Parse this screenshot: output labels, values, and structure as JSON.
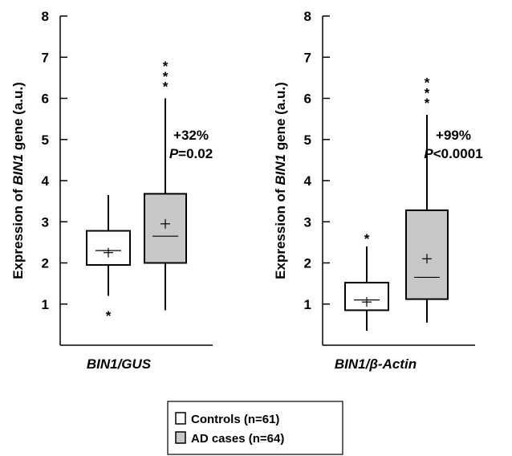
{
  "chart_data": [
    {
      "type": "box",
      "ylabel_prefix": "Expression of ",
      "ylabel_gene": "BIN1",
      "ylabel_suffix": " gene (a.u.)",
      "xlabel": "BIN1/GUS",
      "ylim": [
        0,
        8
      ],
      "yticks": [
        "1",
        "2",
        "3",
        "4",
        "5",
        "6",
        "7",
        "8"
      ],
      "boxes": [
        {
          "group": "Controls",
          "whisker_low": 1.2,
          "q1": 1.95,
          "median": 2.3,
          "mean": 2.25,
          "q3": 2.78,
          "whisker_high": 3.65,
          "outliers": [
            0.78
          ]
        },
        {
          "group": "AD cases",
          "whisker_low": 0.85,
          "q1": 2.0,
          "median": 2.65,
          "mean": 2.95,
          "q3": 3.68,
          "whisker_high": 6.0,
          "outliers": [
            6.35,
            6.6,
            6.85
          ]
        }
      ],
      "annotation": {
        "percent": "+32%",
        "p_italic": "P",
        "p_rest": "=0.02"
      }
    },
    {
      "type": "box",
      "ylabel_prefix": "Expression of ",
      "ylabel_gene": "BIN1",
      "ylabel_suffix": " gene (a.u.)",
      "xlabel": "BIN1/β-Actin",
      "ylim": [
        0,
        8
      ],
      "yticks": [
        "1",
        "2",
        "3",
        "4",
        "5",
        "6",
        "7",
        "8"
      ],
      "boxes": [
        {
          "group": "Controls",
          "whisker_low": 0.35,
          "q1": 0.85,
          "median": 1.1,
          "mean": 1.05,
          "q3": 1.52,
          "whisker_high": 2.4,
          "outliers": [
            2.65
          ]
        },
        {
          "group": "AD cases",
          "whisker_low": 0.55,
          "q1": 1.12,
          "median": 1.65,
          "mean": 2.1,
          "q3": 3.28,
          "whisker_high": 5.6,
          "outliers": [
            5.95,
            6.2,
            6.45
          ]
        }
      ],
      "annotation": {
        "percent": "+99%",
        "p_italic": "P",
        "p_rest": "<0.0001"
      }
    }
  ],
  "legend": [
    {
      "label": "Controls (n=61)",
      "color": "#ffffff"
    },
    {
      "label": "AD cases (n=64)",
      "color": "#c8c8c8"
    }
  ],
  "colors": {
    "controls": "#ffffff",
    "ad_cases": "#c8c8c8",
    "stroke": "#000000"
  }
}
